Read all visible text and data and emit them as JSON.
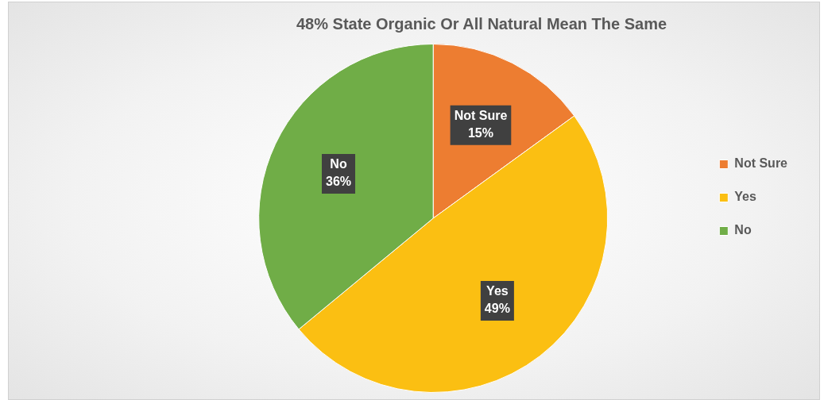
{
  "chart_data": {
    "type": "pie",
    "title": "48% State Organic Or All Natural Mean The Same",
    "categories": [
      "Not Sure",
      "Yes",
      "No"
    ],
    "values": [
      15,
      49,
      36
    ],
    "value_labels": [
      "15%",
      "49%",
      "36%"
    ],
    "colors": [
      "#ed7d31",
      "#fbbf12",
      "#70ad47"
    ],
    "legend": "right"
  }
}
